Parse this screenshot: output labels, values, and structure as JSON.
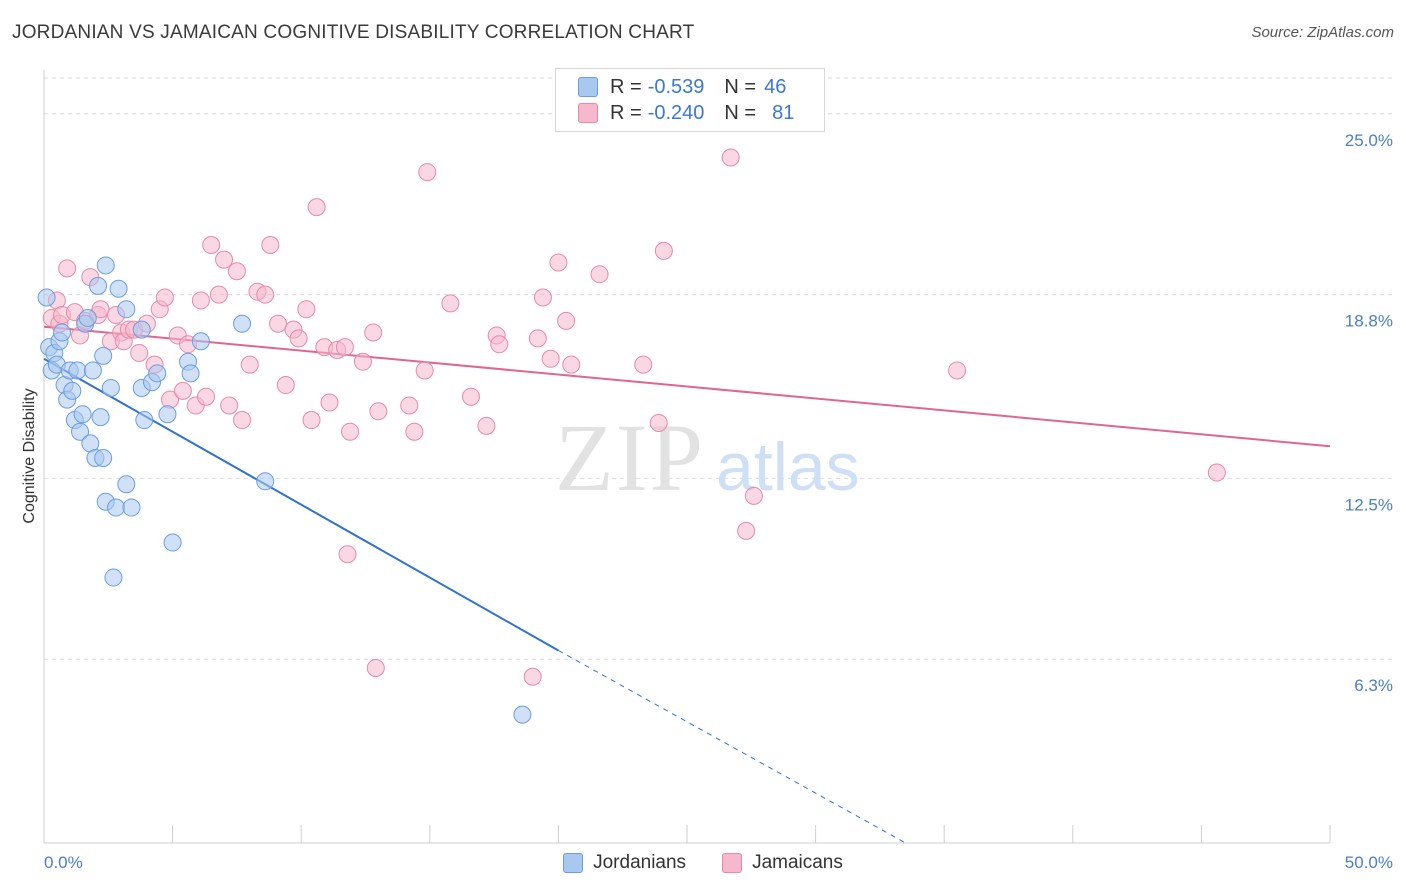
{
  "header": {
    "title": "JORDANIAN VS JAMAICAN COGNITIVE DISABILITY CORRELATION CHART",
    "source": "Source: ZipAtlas.com"
  },
  "legend_top": {
    "rows": [
      {
        "r_label": "R =",
        "r_value": "-0.539",
        "n_label": "N =",
        "n_value": "46"
      },
      {
        "r_label": "R =",
        "r_value": "-0.240",
        "n_label": "N =",
        "n_value": "81"
      }
    ]
  },
  "legend_bottom": {
    "items": [
      "Jordanians",
      "Jamaicans"
    ]
  },
  "watermark": {
    "zip": "ZIP",
    "atlas": "atlas"
  },
  "colors": {
    "jordanian_fill": "#a9c8f0",
    "jordanian_stroke": "#6a9ee0",
    "jordanian_line": "#2f72d0",
    "jamaican_fill": "#f6b8cc",
    "jamaican_stroke": "#e88aa8",
    "jamaican_line": "#e06690",
    "tick_text": "#4a7fc9",
    "grid": "#d9d9d9"
  },
  "chart_data": {
    "type": "scatter",
    "title": "JORDANIAN VS JAMAICAN COGNITIVE DISABILITY CORRELATION CHART",
    "xlabel": "",
    "ylabel": "Cognitive Disability",
    "xlim": [
      0,
      50
    ],
    "ylim": [
      0,
      26.5
    ],
    "x_ticks_labeled": [
      "0.0%",
      "50.0%"
    ],
    "y_ticks": [
      {
        "value": 6.3,
        "label": "6.3%"
      },
      {
        "value": 12.5,
        "label": "12.5%"
      },
      {
        "value": 18.8,
        "label": "18.8%"
      },
      {
        "value": 25.0,
        "label": "25.0%"
      }
    ],
    "grid": "horizontal-dashed",
    "legend_position": "top-center",
    "series": [
      {
        "name": "Jordanians",
        "color": "#a9c8f0",
        "trend": {
          "x": [
            0,
            20
          ],
          "y": [
            16.6,
            6.6
          ],
          "dashed_extension_to": [
            33.5,
            0
          ]
        },
        "points": [
          [
            0.1,
            18.7
          ],
          [
            0.2,
            17.0
          ],
          [
            0.3,
            16.2
          ],
          [
            0.4,
            16.8
          ],
          [
            0.5,
            16.4
          ],
          [
            0.6,
            17.2
          ],
          [
            0.7,
            17.5
          ],
          [
            0.8,
            15.7
          ],
          [
            0.9,
            15.2
          ],
          [
            1.0,
            16.2
          ],
          [
            1.1,
            15.5
          ],
          [
            1.2,
            14.5
          ],
          [
            1.3,
            16.2
          ],
          [
            1.4,
            14.1
          ],
          [
            1.5,
            14.7
          ],
          [
            1.6,
            17.8
          ],
          [
            1.7,
            18.0
          ],
          [
            1.8,
            13.7
          ],
          [
            1.9,
            16.2
          ],
          [
            2.0,
            13.2
          ],
          [
            2.1,
            19.1
          ],
          [
            2.2,
            14.6
          ],
          [
            2.3,
            13.2
          ],
          [
            2.4,
            19.8
          ],
          [
            2.3,
            16.7
          ],
          [
            2.4,
            11.7
          ],
          [
            2.6,
            15.6
          ],
          [
            2.7,
            9.1
          ],
          [
            2.8,
            11.5
          ],
          [
            2.9,
            19.0
          ],
          [
            3.2,
            12.3
          ],
          [
            3.2,
            18.3
          ],
          [
            3.4,
            11.5
          ],
          [
            3.8,
            15.6
          ],
          [
            3.9,
            14.5
          ],
          [
            4.2,
            15.8
          ],
          [
            4.4,
            16.1
          ],
          [
            4.8,
            14.7
          ],
          [
            5.0,
            10.3
          ],
          [
            5.6,
            16.5
          ],
          [
            5.7,
            16.1
          ],
          [
            6.1,
            17.2
          ],
          [
            7.7,
            17.8
          ],
          [
            8.6,
            12.4
          ],
          [
            18.6,
            4.4
          ],
          [
            3.8,
            17.6
          ]
        ]
      },
      {
        "name": "Jamaicans",
        "color": "#f6b8cc",
        "trend": {
          "x": [
            0,
            50
          ],
          "y": [
            17.7,
            13.6
          ]
        },
        "points": [
          [
            0.3,
            18.0
          ],
          [
            0.5,
            18.6
          ],
          [
            0.6,
            17.8
          ],
          [
            0.7,
            18.1
          ],
          [
            0.9,
            19.7
          ],
          [
            1.2,
            18.2
          ],
          [
            1.4,
            17.4
          ],
          [
            1.6,
            17.9
          ],
          [
            1.8,
            19.4
          ],
          [
            2.1,
            18.1
          ],
          [
            2.2,
            18.3
          ],
          [
            2.6,
            17.2
          ],
          [
            2.8,
            18.1
          ],
          [
            3.0,
            17.5
          ],
          [
            3.1,
            17.2
          ],
          [
            3.3,
            17.6
          ],
          [
            3.5,
            17.6
          ],
          [
            3.7,
            16.8
          ],
          [
            4.0,
            17.8
          ],
          [
            4.3,
            16.4
          ],
          [
            4.5,
            18.3
          ],
          [
            4.7,
            18.7
          ],
          [
            4.9,
            15.2
          ],
          [
            5.2,
            17.4
          ],
          [
            5.4,
            15.5
          ],
          [
            5.6,
            17.1
          ],
          [
            5.9,
            15.0
          ],
          [
            6.1,
            18.6
          ],
          [
            6.3,
            15.3
          ],
          [
            6.5,
            20.5
          ],
          [
            6.8,
            18.8
          ],
          [
            7.0,
            20.0
          ],
          [
            7.2,
            15.0
          ],
          [
            7.5,
            19.6
          ],
          [
            7.7,
            14.5
          ],
          [
            8.0,
            16.4
          ],
          [
            8.3,
            18.9
          ],
          [
            8.6,
            18.8
          ],
          [
            8.8,
            20.5
          ],
          [
            9.1,
            17.8
          ],
          [
            9.4,
            15.7
          ],
          [
            9.7,
            17.6
          ],
          [
            9.9,
            17.3
          ],
          [
            10.2,
            18.3
          ],
          [
            10.4,
            14.5
          ],
          [
            10.6,
            21.8
          ],
          [
            10.9,
            17.0
          ],
          [
            11.1,
            15.1
          ],
          [
            11.4,
            16.9
          ],
          [
            11.7,
            17.0
          ],
          [
            11.8,
            9.9
          ],
          [
            11.9,
            14.1
          ],
          [
            12.4,
            16.5
          ],
          [
            12.8,
            17.5
          ],
          [
            12.9,
            6.0
          ],
          [
            13.0,
            14.8
          ],
          [
            14.2,
            15.0
          ],
          [
            14.4,
            14.1
          ],
          [
            14.8,
            16.2
          ],
          [
            14.9,
            23.0
          ],
          [
            15.8,
            18.5
          ],
          [
            16.6,
            15.3
          ],
          [
            17.2,
            14.3
          ],
          [
            17.6,
            17.4
          ],
          [
            17.7,
            17.1
          ],
          [
            19.0,
            5.7
          ],
          [
            19.2,
            17.3
          ],
          [
            19.4,
            18.7
          ],
          [
            19.7,
            16.6
          ],
          [
            20.0,
            19.9
          ],
          [
            20.3,
            17.9
          ],
          [
            20.5,
            16.4
          ],
          [
            21.6,
            19.5
          ],
          [
            23.3,
            16.4
          ],
          [
            23.9,
            14.4
          ],
          [
            24.1,
            20.3
          ],
          [
            26.7,
            23.5
          ],
          [
            27.3,
            10.7
          ],
          [
            27.6,
            11.9
          ],
          [
            35.5,
            16.2
          ],
          [
            45.6,
            12.7
          ]
        ]
      }
    ]
  }
}
